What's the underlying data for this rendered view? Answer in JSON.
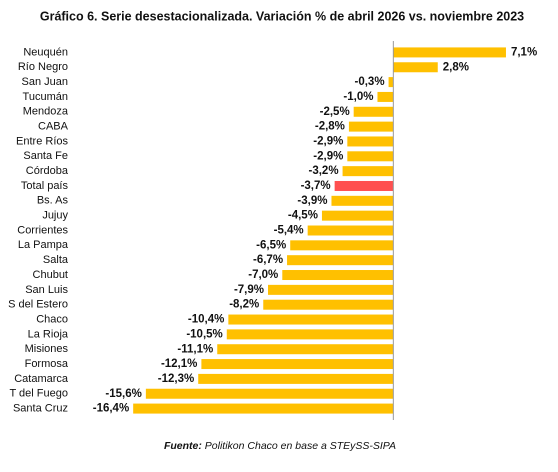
{
  "chart_data": {
    "type": "bar",
    "orientation": "horizontal",
    "title": "Gráfico 6. Serie desestacionalizada. Variación % de abril 2026 vs. noviembre 2023",
    "categories": [
      "Neuquén",
      "Río Negro",
      "San Juan",
      "Tucumán",
      "Mendoza",
      "CABA",
      "Entre Ríos",
      "Santa Fe",
      "Córdoba",
      "Total país",
      "Bs. As",
      "Jujuy",
      "Corrientes",
      "La Pampa",
      "Salta",
      "Chubut",
      "San Luis",
      "S del Estero",
      "Chaco",
      "La Rioja",
      "Misiones",
      "Formosa",
      "Catamarca",
      "T del Fuego",
      "Santa Cruz"
    ],
    "values": [
      7.1,
      2.8,
      -0.3,
      -1.0,
      -2.5,
      -2.8,
      -2.9,
      -2.9,
      -3.2,
      -3.7,
      -3.9,
      -4.5,
      -5.4,
      -6.5,
      -6.7,
      -7.0,
      -7.9,
      -8.2,
      -10.4,
      -10.5,
      -11.1,
      -12.1,
      -12.3,
      -15.6,
      -16.4
    ],
    "value_labels": [
      "7,1%",
      "2,8%",
      "-0,3%",
      "-1,0%",
      "-2,5%",
      "-2,8%",
      "-2,9%",
      "-2,9%",
      "-3,2%",
      "-3,7%",
      "-3,9%",
      "-4,5%",
      "-5,4%",
      "-6,5%",
      "-6,7%",
      "-7,0%",
      "-7,9%",
      "-8,2%",
      "-10,4%",
      "-10,5%",
      "-11,1%",
      "-12,1%",
      "-12,3%",
      "-15,6%",
      "-16,4%"
    ],
    "colors": [
      "#FFC000",
      "#FFC000",
      "#FFC000",
      "#FFC000",
      "#FFC000",
      "#FFC000",
      "#FFC000",
      "#FFC000",
      "#FFC000",
      "#FF5050",
      "#FFC000",
      "#FFC000",
      "#FFC000",
      "#FFC000",
      "#FFC000",
      "#FFC000",
      "#FFC000",
      "#FFC000",
      "#FFC000",
      "#FFC000",
      "#FFC000",
      "#FFC000",
      "#FFC000",
      "#FFC000",
      "#FFC000"
    ],
    "xlim": [
      -16.6,
      8.3
    ],
    "source_label": "Fuente:",
    "source_text": "Politikon Chaco en base a STEySS-SIPA"
  }
}
